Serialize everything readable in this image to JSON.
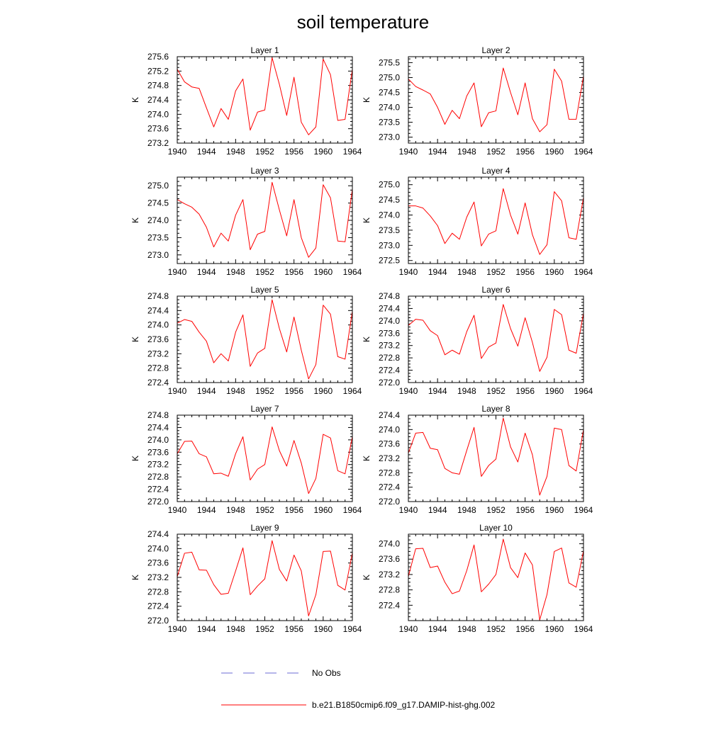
{
  "title": "soil temperature",
  "legend": {
    "placement": "bottom-center",
    "entries": [
      {
        "label": "No Obs",
        "color": "#6b6bd6",
        "dash": "dashed"
      },
      {
        "label": "b.e21.B1850cmip6.f09_g17.DAMIP-hist-ghg.002",
        "color": "#ff0000",
        "dash": "solid"
      }
    ]
  },
  "chart_data": [
    {
      "type": "line",
      "title": "Layer 1",
      "ylabel": "K",
      "xlim": [
        1940,
        1964
      ],
      "xticks": [
        1940,
        1944,
        1948,
        1952,
        1956,
        1960,
        1964
      ],
      "ylim": [
        273.2,
        275.6
      ],
      "yticks": [
        273.2,
        273.6,
        274.0,
        274.4,
        274.8,
        275.2,
        275.6
      ],
      "ydecimals": 1,
      "series": [
        {
          "color": "#ff0000",
          "x": [
            1940,
            1941,
            1942,
            1943,
            1944,
            1945,
            1946,
            1947,
            1948,
            1949,
            1950,
            1951,
            1952,
            1953,
            1954,
            1955,
            1956,
            1957,
            1958,
            1959,
            1960,
            1961,
            1962,
            1963,
            1964
          ],
          "y": [
            275.25,
            274.9,
            274.76,
            274.72,
            274.18,
            273.65,
            274.16,
            273.86,
            274.65,
            274.98,
            273.56,
            274.06,
            274.12,
            275.57,
            274.83,
            273.97,
            275.03,
            273.78,
            273.43,
            273.65,
            275.53,
            275.1,
            273.83,
            273.86,
            275.25
          ]
        }
      ]
    },
    {
      "type": "line",
      "title": "Layer 2",
      "ylabel": "K",
      "xlim": [
        1940,
        1964
      ],
      "xticks": [
        1940,
        1944,
        1948,
        1952,
        1956,
        1960,
        1964
      ],
      "ylim": [
        272.8,
        275.7
      ],
      "yticks": [
        273.0,
        273.5,
        274.0,
        274.5,
        275.0,
        275.5
      ],
      "ydecimals": 1,
      "series": [
        {
          "color": "#ff0000",
          "x": [
            1940,
            1941,
            1942,
            1943,
            1944,
            1945,
            1946,
            1947,
            1948,
            1949,
            1950,
            1951,
            1952,
            1953,
            1954,
            1955,
            1956,
            1957,
            1958,
            1959,
            1960,
            1961,
            1962,
            1963,
            1964
          ],
          "y": [
            274.95,
            274.7,
            274.58,
            274.45,
            274.0,
            273.43,
            273.9,
            273.62,
            274.38,
            274.82,
            273.35,
            273.82,
            273.88,
            275.32,
            274.5,
            273.75,
            274.82,
            273.62,
            273.18,
            273.42,
            275.28,
            274.88,
            273.6,
            273.6,
            275.05
          ]
        }
      ]
    },
    {
      "type": "line",
      "title": "Layer 3",
      "ylabel": "K",
      "xlim": [
        1940,
        1964
      ],
      "xticks": [
        1940,
        1944,
        1948,
        1952,
        1956,
        1960,
        1964
      ],
      "ylim": [
        272.75,
        275.25
      ],
      "yticks": [
        273.0,
        273.5,
        274.0,
        274.5,
        275.0
      ],
      "ydecimals": 1,
      "series": [
        {
          "color": "#ff0000",
          "x": [
            1940,
            1941,
            1942,
            1943,
            1944,
            1945,
            1946,
            1947,
            1948,
            1949,
            1950,
            1951,
            1952,
            1953,
            1954,
            1955,
            1956,
            1957,
            1958,
            1959,
            1960,
            1961,
            1962,
            1963,
            1964
          ],
          "y": [
            274.6,
            274.48,
            274.38,
            274.18,
            273.8,
            273.23,
            273.63,
            273.4,
            274.15,
            274.6,
            273.15,
            273.6,
            273.68,
            275.1,
            274.3,
            273.55,
            274.6,
            273.5,
            272.93,
            273.2,
            275.03,
            274.65,
            273.4,
            273.38,
            274.9
          ]
        }
      ]
    },
    {
      "type": "line",
      "title": "Layer 4",
      "ylabel": "K",
      "xlim": [
        1940,
        1964
      ],
      "xticks": [
        1940,
        1944,
        1948,
        1952,
        1956,
        1960,
        1964
      ],
      "ylim": [
        272.4,
        275.25
      ],
      "yticks": [
        272.5,
        273.0,
        273.5,
        274.0,
        274.5,
        275.0
      ],
      "ydecimals": 1,
      "series": [
        {
          "color": "#ff0000",
          "x": [
            1940,
            1941,
            1942,
            1943,
            1944,
            1945,
            1946,
            1947,
            1948,
            1949,
            1950,
            1951,
            1952,
            1953,
            1954,
            1955,
            1956,
            1957,
            1958,
            1959,
            1960,
            1961,
            1962,
            1963,
            1964
          ],
          "y": [
            274.3,
            274.3,
            274.23,
            273.97,
            273.65,
            273.06,
            273.4,
            273.2,
            273.93,
            274.43,
            272.98,
            273.37,
            273.48,
            274.87,
            274.0,
            273.37,
            274.4,
            273.35,
            272.7,
            273.02,
            274.77,
            274.47,
            273.25,
            273.2,
            274.58
          ]
        }
      ]
    },
    {
      "type": "line",
      "title": "Layer 5",
      "ylabel": "K",
      "xlim": [
        1940,
        1964
      ],
      "xticks": [
        1940,
        1944,
        1948,
        1952,
        1956,
        1960,
        1964
      ],
      "ylim": [
        272.4,
        274.8
      ],
      "yticks": [
        272.4,
        272.8,
        273.2,
        273.6,
        274.0,
        274.4,
        274.8
      ],
      "ydecimals": 1,
      "series": [
        {
          "color": "#ff0000",
          "x": [
            1940,
            1941,
            1942,
            1943,
            1944,
            1945,
            1946,
            1947,
            1948,
            1949,
            1950,
            1951,
            1952,
            1953,
            1954,
            1955,
            1956,
            1957,
            1958,
            1959,
            1960,
            1961,
            1962,
            1963,
            1964
          ],
          "y": [
            274.05,
            274.15,
            274.1,
            273.8,
            273.55,
            272.95,
            273.2,
            273.0,
            273.8,
            274.28,
            272.85,
            273.22,
            273.35,
            274.7,
            273.9,
            273.25,
            274.22,
            273.3,
            272.5,
            272.9,
            274.55,
            274.3,
            273.12,
            273.05,
            274.38
          ]
        }
      ]
    },
    {
      "type": "line",
      "title": "Layer 6",
      "ylabel": "K",
      "xlim": [
        1940,
        1964
      ],
      "xticks": [
        1940,
        1944,
        1948,
        1952,
        1956,
        1960,
        1964
      ],
      "ylim": [
        272.0,
        274.8
      ],
      "yticks": [
        272.0,
        272.4,
        272.8,
        273.2,
        273.6,
        274.0,
        274.4,
        274.8
      ],
      "ydecimals": 1,
      "series": [
        {
          "color": "#ff0000",
          "x": [
            1940,
            1941,
            1942,
            1943,
            1944,
            1945,
            1946,
            1947,
            1948,
            1949,
            1950,
            1951,
            1952,
            1953,
            1954,
            1955,
            1956,
            1957,
            1958,
            1959,
            1960,
            1961,
            1962,
            1963,
            1964
          ],
          "y": [
            273.85,
            274.05,
            274.02,
            273.68,
            273.52,
            272.9,
            273.05,
            272.92,
            273.65,
            274.18,
            272.78,
            273.15,
            273.28,
            274.53,
            273.75,
            273.18,
            274.1,
            273.3,
            272.36,
            272.82,
            274.37,
            274.2,
            273.05,
            272.95,
            274.25
          ]
        }
      ]
    },
    {
      "type": "line",
      "title": "Layer 7",
      "ylabel": "K",
      "xlim": [
        1940,
        1964
      ],
      "xticks": [
        1940,
        1944,
        1948,
        1952,
        1956,
        1960,
        1964
      ],
      "ylim": [
        272.0,
        274.8
      ],
      "yticks": [
        272.0,
        272.4,
        272.8,
        273.2,
        273.6,
        274.0,
        274.4,
        274.8
      ],
      "ydecimals": 1,
      "series": [
        {
          "color": "#ff0000",
          "x": [
            1940,
            1941,
            1942,
            1943,
            1944,
            1945,
            1946,
            1947,
            1948,
            1949,
            1950,
            1951,
            1952,
            1953,
            1954,
            1955,
            1956,
            1957,
            1958,
            1959,
            1960,
            1961,
            1962,
            1963,
            1964
          ],
          "y": [
            273.55,
            273.95,
            273.96,
            273.55,
            273.45,
            272.9,
            272.92,
            272.82,
            273.55,
            274.1,
            272.7,
            273.05,
            273.2,
            274.42,
            273.65,
            273.15,
            273.98,
            273.25,
            272.26,
            272.75,
            274.18,
            274.06,
            273.0,
            272.9,
            274.1
          ]
        }
      ]
    },
    {
      "type": "line",
      "title": "Layer 8",
      "ylabel": "K",
      "xlim": [
        1940,
        1964
      ],
      "xticks": [
        1940,
        1944,
        1948,
        1952,
        1956,
        1960,
        1964
      ],
      "ylim": [
        272.0,
        274.4
      ],
      "yticks": [
        272.0,
        272.4,
        272.8,
        273.2,
        273.6,
        274.0,
        274.4
      ],
      "ydecimals": 1,
      "series": [
        {
          "color": "#ff0000",
          "x": [
            1940,
            1941,
            1942,
            1943,
            1944,
            1945,
            1946,
            1947,
            1948,
            1949,
            1950,
            1951,
            1952,
            1953,
            1954,
            1955,
            1956,
            1957,
            1958,
            1959,
            1960,
            1961,
            1962,
            1963,
            1964
          ],
          "y": [
            273.35,
            273.9,
            273.92,
            273.48,
            273.44,
            272.92,
            272.8,
            272.76,
            273.42,
            274.06,
            272.7,
            273.0,
            273.18,
            274.32,
            273.52,
            273.1,
            273.9,
            273.3,
            272.18,
            272.7,
            274.04,
            274.0,
            273.0,
            272.85,
            274.0
          ]
        }
      ]
    },
    {
      "type": "line",
      "title": "Layer 9",
      "ylabel": "K",
      "xlim": [
        1940,
        1964
      ],
      "xticks": [
        1940,
        1944,
        1948,
        1952,
        1956,
        1960,
        1964
      ],
      "ylim": [
        272.0,
        274.4
      ],
      "yticks": [
        272.0,
        272.4,
        272.8,
        273.2,
        273.6,
        274.0,
        274.4
      ],
      "ydecimals": 1,
      "series": [
        {
          "color": "#ff0000",
          "x": [
            1940,
            1941,
            1942,
            1943,
            1944,
            1945,
            1946,
            1947,
            1948,
            1949,
            1950,
            1951,
            1952,
            1953,
            1954,
            1955,
            1956,
            1957,
            1958,
            1959,
            1960,
            1961,
            1962,
            1963,
            1964
          ],
          "y": [
            273.22,
            273.87,
            273.9,
            273.41,
            273.4,
            273.0,
            272.73,
            272.76,
            273.38,
            274.02,
            272.72,
            272.96,
            273.16,
            274.22,
            273.42,
            273.1,
            273.82,
            273.38,
            272.13,
            272.72,
            273.92,
            273.93,
            272.98,
            272.85,
            273.88
          ]
        }
      ]
    },
    {
      "type": "line",
      "title": "Layer 10",
      "ylabel": "K",
      "xlim": [
        1940,
        1964
      ],
      "xticks": [
        1940,
        1944,
        1948,
        1952,
        1956,
        1960,
        1964
      ],
      "ylim": [
        272.0,
        274.25
      ],
      "yticks": [
        272.4,
        272.8,
        273.2,
        273.6,
        274.0
      ],
      "ydecimals": 1,
      "series": [
        {
          "color": "#ff0000",
          "x": [
            1940,
            1941,
            1942,
            1943,
            1944,
            1945,
            1946,
            1947,
            1948,
            1949,
            1950,
            1951,
            1952,
            1953,
            1954,
            1955,
            1956,
            1957,
            1958,
            1959,
            1960,
            1961,
            1962,
            1963,
            1964
          ],
          "y": [
            273.15,
            273.87,
            273.88,
            273.38,
            273.42,
            273.0,
            272.7,
            272.77,
            273.3,
            273.97,
            272.75,
            272.95,
            273.2,
            274.12,
            273.38,
            273.12,
            273.76,
            273.45,
            272.02,
            272.68,
            273.8,
            273.89,
            272.98,
            272.87,
            273.82
          ]
        }
      ]
    }
  ]
}
